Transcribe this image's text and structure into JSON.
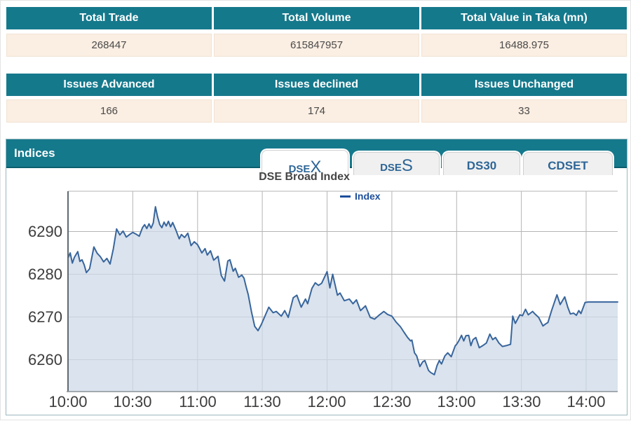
{
  "summary_table": {
    "headers": [
      "Total Trade",
      "Total Volume",
      "Total Value in Taka (mn)"
    ],
    "values": [
      "268447",
      "615847957",
      "16488.975"
    ]
  },
  "issues_table": {
    "headers": [
      "Issues Advanced",
      "Issues declined",
      "Issues Unchanged"
    ],
    "values": [
      "166",
      "174",
      "33"
    ]
  },
  "indices_panel": {
    "title": "Indices",
    "tabs": [
      {
        "prefix": "DSE",
        "big": "X",
        "active": true
      },
      {
        "prefix": "DSE",
        "big": "S",
        "active": false
      },
      {
        "prefix": "DS30",
        "big": "",
        "active": false
      },
      {
        "prefix": "CDSET",
        "big": "",
        "active": false
      }
    ]
  },
  "colors": {
    "header_teal": "#15798c",
    "row_bg": "#fbeee2",
    "tab_text": "#2d6596",
    "legend_blue": "#1d4e9b"
  },
  "chart_data": {
    "type": "area",
    "title": "DSE Broad Index",
    "legend": [
      {
        "label": "Index",
        "color": "#1d4e9b"
      }
    ],
    "x_tick_labels": [
      "10:00",
      "10:30",
      "11:00",
      "11:30",
      "12:00",
      "12:30",
      "13:00",
      "13:30",
      "14:00"
    ],
    "y_tick_labels": [
      "6290",
      "6280",
      "6270",
      "6260"
    ],
    "x_axis": {
      "start": "10:00",
      "end": "14:15",
      "tick_interval_minutes": 30,
      "units": "minutes since 10:00"
    },
    "ylim": [
      6253,
      6299
    ],
    "grid": true,
    "legend_position": "top-center",
    "colors": {
      "line": "#38659b",
      "fill": "#cdd9e8",
      "grid": "#b5b5b5"
    },
    "points": [
      [
        0,
        6283.8
      ],
      [
        1,
        6285.0
      ],
      [
        2,
        6282.6
      ],
      [
        3,
        6284.0
      ],
      [
        4.5,
        6285.3
      ],
      [
        5.5,
        6283.0
      ],
      [
        6.5,
        6283.4
      ],
      [
        7.5,
        6282.2
      ],
      [
        8.5,
        6280.4
      ],
      [
        10,
        6281.3
      ],
      [
        12,
        6286.4
      ],
      [
        13.5,
        6284.9
      ],
      [
        15,
        6284.1
      ],
      [
        16.5,
        6282.9
      ],
      [
        18,
        6283.7
      ],
      [
        19.5,
        6282.4
      ],
      [
        21,
        6286.0
      ],
      [
        22.5,
        6290.6
      ],
      [
        24,
        6289.2
      ],
      [
        25.5,
        6290.1
      ],
      [
        27,
        6288.7
      ],
      [
        28.5,
        6289.3
      ],
      [
        30,
        6289.8
      ],
      [
        31.5,
        6289.4
      ],
      [
        33,
        6288.9
      ],
      [
        34.5,
        6290.9
      ],
      [
        35.5,
        6291.6
      ],
      [
        36.5,
        6290.7
      ],
      [
        37.5,
        6291.8
      ],
      [
        38.5,
        6290.8
      ],
      [
        39.5,
        6292.0
      ],
      [
        40.5,
        6295.8
      ],
      [
        41.5,
        6293.4
      ],
      [
        42.5,
        6291.6
      ],
      [
        43.5,
        6290.9
      ],
      [
        44.5,
        6292.2
      ],
      [
        45.5,
        6291.3
      ],
      [
        46.5,
        6292.4
      ],
      [
        47.5,
        6291.1
      ],
      [
        48.5,
        6292.1
      ],
      [
        50,
        6290.3
      ],
      [
        51.5,
        6288.3
      ],
      [
        52.5,
        6289.3
      ],
      [
        54,
        6288.6
      ],
      [
        55.5,
        6289.6
      ],
      [
        57,
        6286.7
      ],
      [
        58.5,
        6287.6
      ],
      [
        60,
        6286.9
      ],
      [
        61,
        6286.0
      ],
      [
        62,
        6285.0
      ],
      [
        63.5,
        6286.0
      ],
      [
        64.5,
        6284.5
      ],
      [
        66,
        6285.5
      ],
      [
        67.5,
        6283.3
      ],
      [
        69.5,
        6284.2
      ],
      [
        71,
        6279.7
      ],
      [
        72.5,
        6278.4
      ],
      [
        74,
        6283.1
      ],
      [
        75,
        6283.4
      ],
      [
        76.5,
        6280.7
      ],
      [
        77.5,
        6281.4
      ],
      [
        79,
        6279.3
      ],
      [
        80.5,
        6279.8
      ],
      [
        81.5,
        6279.1
      ],
      [
        82.5,
        6277.1
      ],
      [
        83.5,
        6275.2
      ],
      [
        85,
        6271.2
      ],
      [
        86.5,
        6267.8
      ],
      [
        88,
        6266.8
      ],
      [
        89.5,
        6268.2
      ],
      [
        93,
        6272.3
      ],
      [
        95,
        6271.0
      ],
      [
        96.5,
        6271.3
      ],
      [
        98.8,
        6270.2
      ],
      [
        100.4,
        6271.5
      ],
      [
        102,
        6269.9
      ],
      [
        104.3,
        6274.5
      ],
      [
        106,
        6275.1
      ],
      [
        108,
        6272.3
      ],
      [
        110,
        6274.2
      ],
      [
        111,
        6273.1
      ],
      [
        113,
        6276.7
      ],
      [
        114.5,
        6278.0
      ],
      [
        116,
        6277.4
      ],
      [
        117.5,
        6277.9
      ],
      [
        120,
        6280.6
      ],
      [
        121.3,
        6276.8
      ],
      [
        122.6,
        6280.0
      ],
      [
        124.8,
        6275.1
      ],
      [
        126,
        6275.6
      ],
      [
        128,
        6273.8
      ],
      [
        130.3,
        6274.2
      ],
      [
        132,
        6273.1
      ],
      [
        133.6,
        6274.0
      ],
      [
        135.5,
        6271.5
      ],
      [
        137.8,
        6272.6
      ],
      [
        140,
        6269.9
      ],
      [
        142,
        6269.5
      ],
      [
        144.3,
        6270.5
      ],
      [
        146.3,
        6271.3
      ],
      [
        148,
        6270.6
      ],
      [
        150,
        6270.2
      ],
      [
        152,
        6268.8
      ],
      [
        154,
        6267.7
      ],
      [
        155.7,
        6266.4
      ],
      [
        157.3,
        6265.2
      ],
      [
        158.7,
        6264.4
      ],
      [
        159.3,
        6264.6
      ],
      [
        160.5,
        6261.6
      ],
      [
        161.5,
        6260.9
      ],
      [
        163,
        6258.4
      ],
      [
        164.3,
        6259.5
      ],
      [
        165.3,
        6259.8
      ],
      [
        167,
        6257.5
      ],
      [
        168,
        6257.0
      ],
      [
        169.7,
        6256.5
      ],
      [
        171,
        6258.7
      ],
      [
        172,
        6259.8
      ],
      [
        173,
        6259.0
      ],
      [
        174.6,
        6260.9
      ],
      [
        175.9,
        6261.6
      ],
      [
        177.5,
        6260.7
      ],
      [
        179.4,
        6263.3
      ],
      [
        180,
        6263.6
      ],
      [
        181,
        6264.4
      ],
      [
        182.3,
        6265.7
      ],
      [
        183.3,
        6264.4
      ],
      [
        184.3,
        6265.6
      ],
      [
        185.6,
        6265.7
      ],
      [
        186.6,
        6263.3
      ],
      [
        187.6,
        6264.7
      ],
      [
        188.9,
        6265.2
      ],
      [
        190.5,
        6262.8
      ],
      [
        192.1,
        6263.3
      ],
      [
        193.8,
        6263.9
      ],
      [
        195.4,
        6266.0
      ],
      [
        196.7,
        6264.7
      ],
      [
        198,
        6265.2
      ],
      [
        199.6,
        6263.9
      ],
      [
        201.2,
        6263.1
      ],
      [
        203,
        6263.3
      ],
      [
        205,
        6263.6
      ],
      [
        206,
        6270.2
      ],
      [
        207.2,
        6268.5
      ],
      [
        209.3,
        6270.5
      ],
      [
        210.5,
        6270.3
      ],
      [
        211.9,
        6271.8
      ],
      [
        213.2,
        6270.5
      ],
      [
        215.2,
        6271.3
      ],
      [
        216.5,
        6270.6
      ],
      [
        218,
        6269.9
      ],
      [
        220,
        6267.9
      ],
      [
        221.3,
        6268.4
      ],
      [
        222.3,
        6268.7
      ],
      [
        224,
        6271.5
      ],
      [
        226.5,
        6275.2
      ],
      [
        228,
        6272.9
      ],
      [
        230.1,
        6274.7
      ],
      [
        231.5,
        6272.3
      ],
      [
        232.7,
        6270.7
      ],
      [
        234.2,
        6270.9
      ],
      [
        235.5,
        6270.4
      ],
      [
        236.6,
        6271.5
      ],
      [
        237.6,
        6270.8
      ],
      [
        239.5,
        6273.4
      ],
      [
        241,
        6273.5
      ],
      [
        248,
        6273.5
      ],
      [
        255,
        6273.5
      ]
    ]
  }
}
